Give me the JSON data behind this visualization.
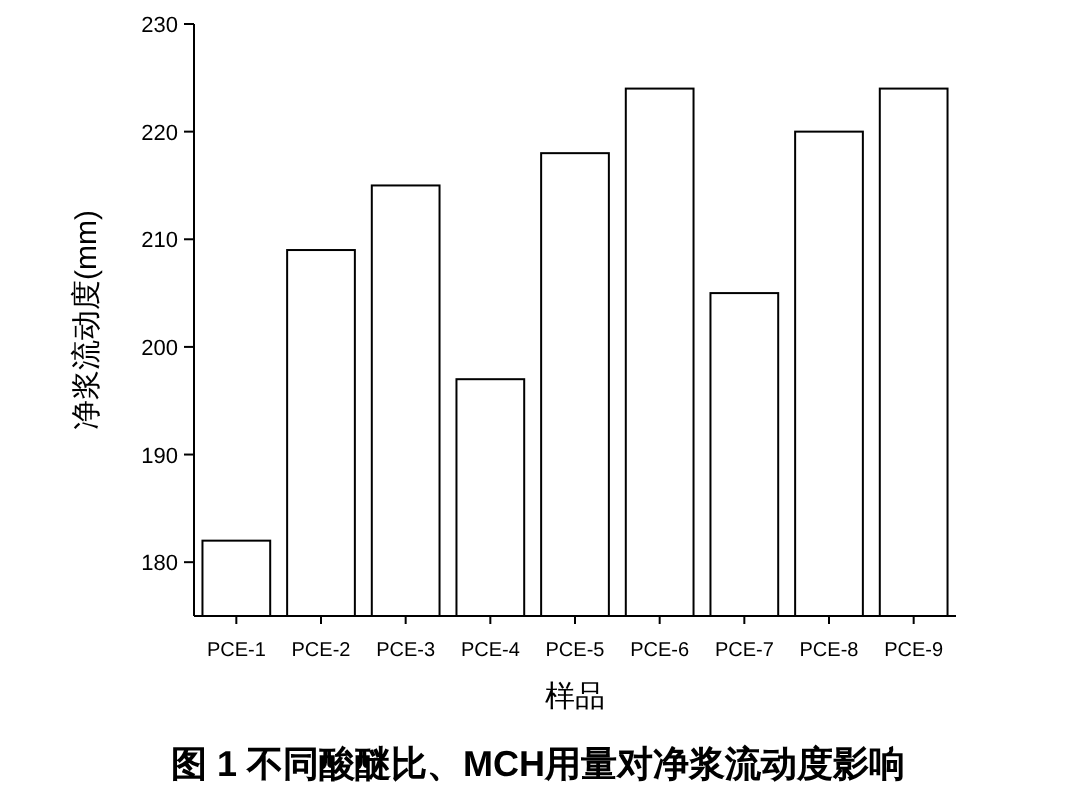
{
  "chart_data": {
    "type": "bar",
    "xlabel": "样品",
    "ylabel": "净浆流动度(mm)",
    "annotations": [
      "图 1   不同酸醚比、MCH用量对净浆流动度影响"
    ],
    "categories": [
      "PCE-1",
      "PCE-2",
      "PCE-3",
      "PCE-4",
      "PCE-5",
      "PCE-6",
      "PCE-7",
      "PCE-8",
      "PCE-9"
    ],
    "series": [
      {
        "color": "#ffffff",
        "values": [
          182,
          209,
          215,
          197,
          218,
          224,
          205,
          220,
          224
        ]
      }
    ],
    "ylim": [
      175,
      230
    ],
    "yticks": [
      180,
      190,
      200,
      210,
      220,
      230
    ]
  }
}
